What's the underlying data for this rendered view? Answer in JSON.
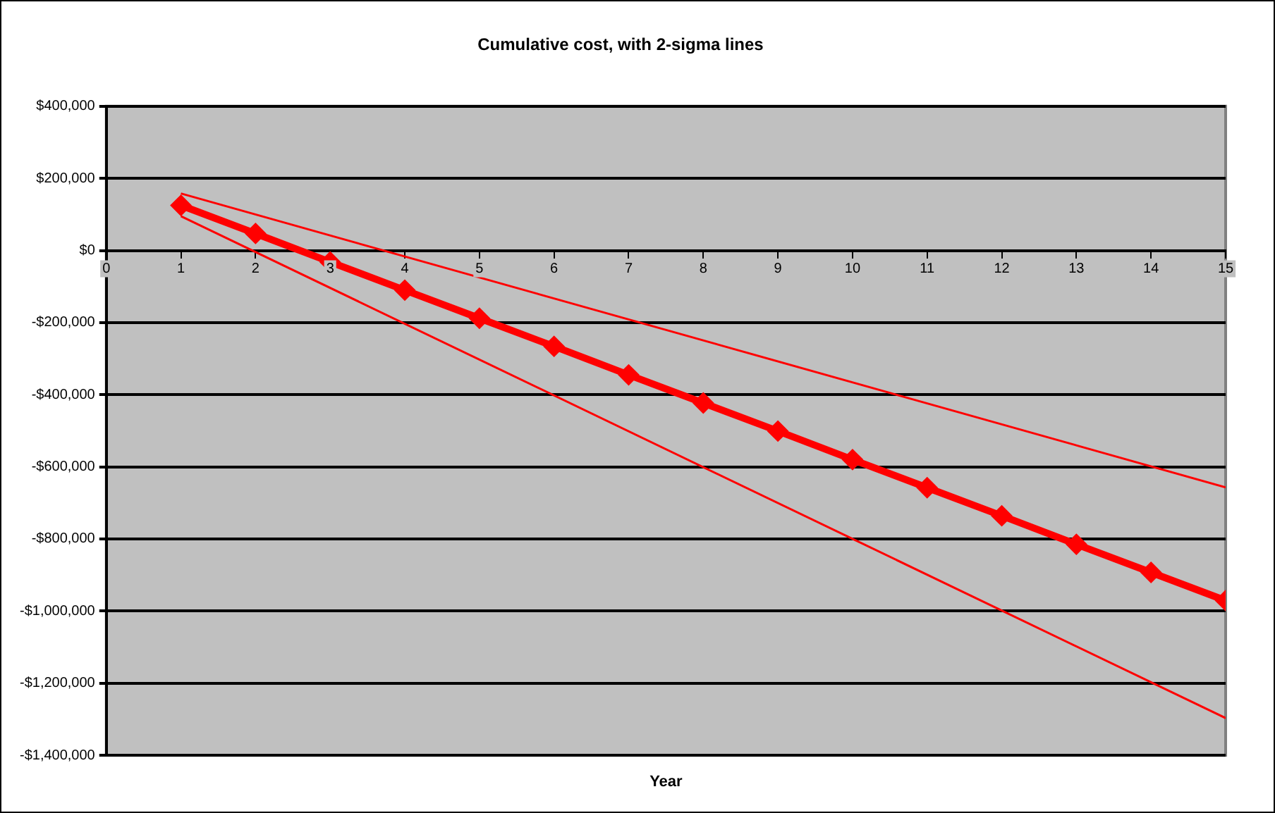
{
  "chart_data": {
    "type": "line",
    "title": "Cumulative cost, with 2-sigma lines",
    "xlabel": "Year",
    "series": [
      {
        "color": "#ff0000",
        "x": [
          1,
          2,
          3,
          4,
          5,
          6,
          7,
          8,
          9,
          10,
          11,
          12,
          13,
          14,
          15
        ],
        "values": [
          125000,
          47000,
          -32000,
          -110000,
          -188000,
          -266000,
          -345000,
          -423000,
          -501000,
          -580000,
          -658000,
          -736000,
          -815000,
          -893000,
          -971000
        ]
      },
      {
        "color": "#ff0000",
        "marker": "none",
        "x": [
          1,
          15
        ],
        "values": [
          158000,
          -657000
        ]
      },
      {
        "color": "#ff0000",
        "marker": "none",
        "x": [
          1,
          15
        ],
        "values": [
          95000,
          -1297000
        ]
      }
    ],
    "xlim": [
      0,
      15
    ],
    "xticks": [
      0,
      1,
      2,
      3,
      4,
      5,
      6,
      7,
      8,
      9,
      10,
      11,
      12,
      13,
      14,
      15
    ],
    "ylim": [
      -1400000,
      400000
    ],
    "yticks": [
      {
        "value": 400000,
        "label": "$400,000"
      },
      {
        "value": 200000,
        "label": "$200,000"
      },
      {
        "value": 0,
        "label": "$0"
      },
      {
        "value": -200000,
        "label": "-$200,000"
      },
      {
        "value": -400000,
        "label": "-$400,000"
      },
      {
        "value": -600000,
        "label": "-$600,000"
      },
      {
        "value": -800000,
        "label": "-$800,000"
      },
      {
        "value": -1000000,
        "label": "-$1,000,000"
      },
      {
        "value": -1200000,
        "label": "-$1,200,000"
      },
      {
        "value": -1400000,
        "label": "-$1,400,000"
      }
    ],
    "grid": "y",
    "legend": false,
    "marker": "diamond",
    "line_style": "solid"
  }
}
